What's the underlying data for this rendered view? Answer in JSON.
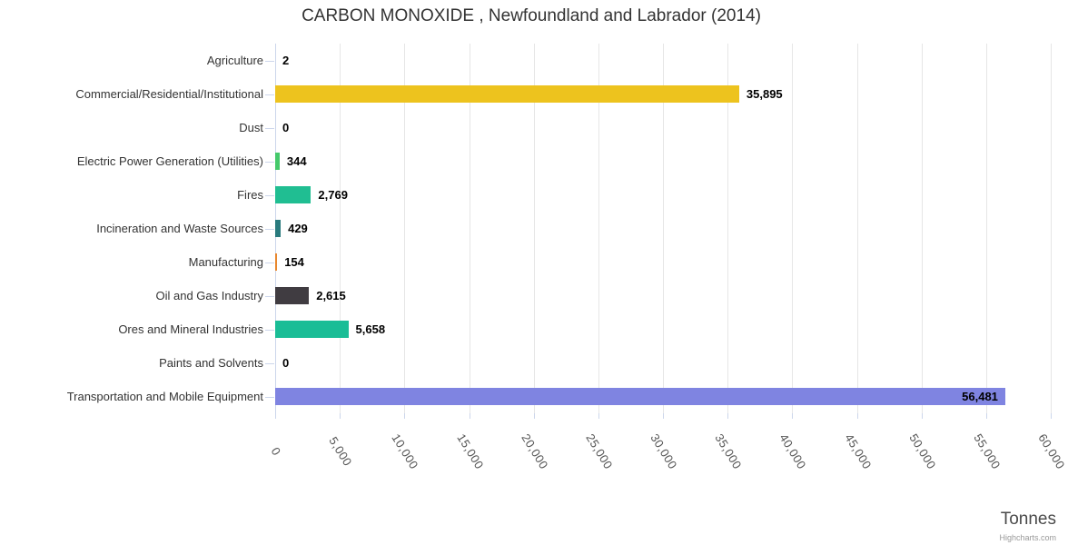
{
  "credits": "Highcharts.com",
  "colors": {
    "grid_line": "#e6e6e6",
    "axis_line": "#ccd6eb",
    "category_label": "#333333",
    "tick_label": "#555555",
    "title": "#333333",
    "value_label": "#000000",
    "credits": "#999999",
    "background": "#ffffff"
  },
  "chart_data": {
    "type": "bar",
    "orientation": "horizontal",
    "title": "CARBON MONOXIDE , Newfoundland and Labrador (2014)",
    "grid": true,
    "legend": false,
    "categories": [
      "Agriculture",
      "Commercial/Residential/Institutional",
      "Dust",
      "Electric Power Generation (Utilities)",
      "Fires",
      "Incineration and Waste Sources",
      "Manufacturing",
      "Oil and Gas Industry",
      "Ores and Mineral Industries",
      "Paints and Solvents",
      "Transportation and Mobile Equipment"
    ],
    "values": [
      2,
      35895,
      0,
      344,
      2769,
      429,
      154,
      2615,
      5658,
      0,
      56481
    ],
    "value_labels": [
      "2",
      "35,895",
      "0",
      "344",
      "2,769",
      "429",
      "154",
      "2,615",
      "5,658",
      "0",
      "56,481"
    ],
    "bar_colors": [
      "#999999",
      "#edc31e",
      "#999999",
      "#45c96b",
      "#20be92",
      "#2a7b7e",
      "#e8872e",
      "#403c41",
      "#1abd96",
      "#999999",
      "#7f84e1"
    ],
    "value_axis": {
      "title": "Tonnes",
      "min": 0,
      "max": 60000,
      "tick_interval": 5000,
      "tick_labels": [
        "0",
        "5,000",
        "10,000",
        "15,000",
        "20,000",
        "25,000",
        "30,000",
        "35,000",
        "40,000",
        "45,000",
        "50,000",
        "55,000",
        "60,000"
      ]
    }
  }
}
